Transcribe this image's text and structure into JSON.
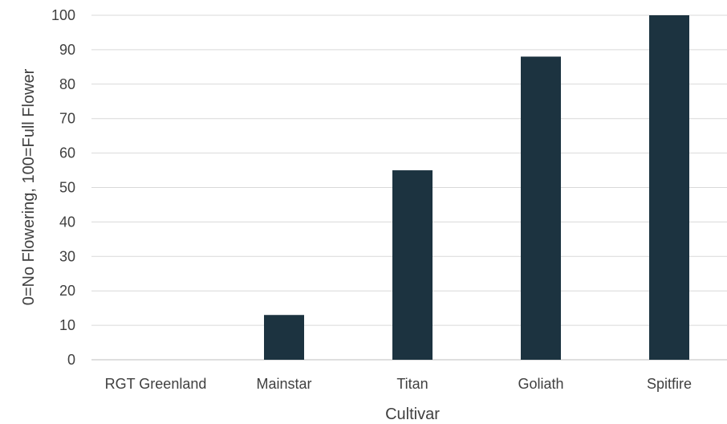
{
  "chart_data": {
    "type": "bar",
    "categories": [
      "RGT Greenland",
      "Mainstar",
      "Titan",
      "Goliath",
      "Spitfire"
    ],
    "values": [
      0,
      13,
      55,
      88,
      100
    ],
    "title": "",
    "xlabel": "Cultivar",
    "ylabel": "0=No Flowering, 100=Full Flower",
    "ylim": [
      0,
      100
    ],
    "yticks": [
      0,
      10,
      20,
      30,
      40,
      50,
      60,
      70,
      80,
      90,
      100
    ],
    "grid": true,
    "legend": "none",
    "bar_color": "#1c3340"
  }
}
